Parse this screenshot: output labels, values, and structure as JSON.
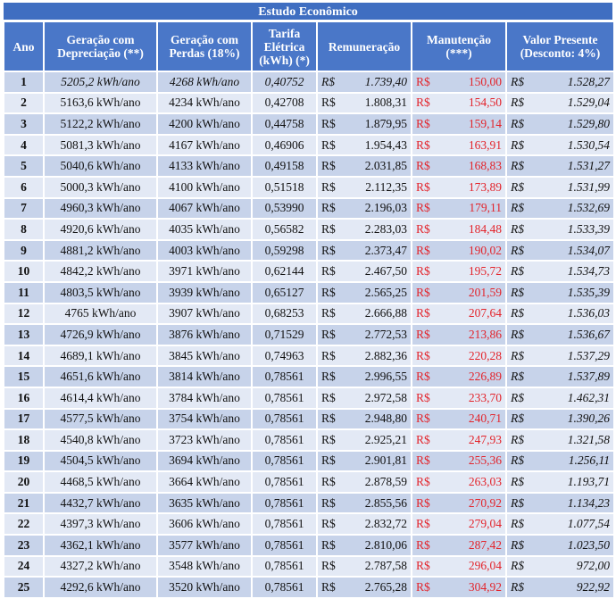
{
  "title": "Estudo Econômico",
  "headers": {
    "ano": "Ano",
    "geracao_dep": "Geração com Depreciação (**)",
    "geracao_perdas": "Geração com Perdas (18%)",
    "tarifa": "Tarifa Elétrica (kWh) (*)",
    "remuneracao": "Remuneração",
    "manutencao": "Manutenção (***)",
    "valor_presente": "Valor Presente (Desconto: 4%)"
  },
  "currency": "R$",
  "rows": [
    {
      "ano": "1",
      "g1": "5205,2 kWh/ano",
      "g2": "4268 kWh/ano",
      "t": "0,40752",
      "r": "1.739,40",
      "m": "150,00",
      "v": "1.528,27"
    },
    {
      "ano": "2",
      "g1": "5163,6 kWh/ano",
      "g2": "4234 kWh/ano",
      "t": "0,42708",
      "r": "1.808,31",
      "m": "154,50",
      "v": "1.529,04"
    },
    {
      "ano": "3",
      "g1": "5122,2 kWh/ano",
      "g2": "4200 kWh/ano",
      "t": "0,44758",
      "r": "1.879,95",
      "m": "159,14",
      "v": "1.529,80"
    },
    {
      "ano": "4",
      "g1": "5081,3 kWh/ano",
      "g2": "4167 kWh/ano",
      "t": "0,46906",
      "r": "1.954,43",
      "m": "163,91",
      "v": "1.530,54"
    },
    {
      "ano": "5",
      "g1": "5040,6 kWh/ano",
      "g2": "4133 kWh/ano",
      "t": "0,49158",
      "r": "2.031,85",
      "m": "168,83",
      "v": "1.531,27"
    },
    {
      "ano": "6",
      "g1": "5000,3 kWh/ano",
      "g2": "4100 kWh/ano",
      "t": "0,51518",
      "r": "2.112,35",
      "m": "173,89",
      "v": "1.531,99"
    },
    {
      "ano": "7",
      "g1": "4960,3 kWh/ano",
      "g2": "4067 kWh/ano",
      "t": "0,53990",
      "r": "2.196,03",
      "m": "179,11",
      "v": "1.532,69"
    },
    {
      "ano": "8",
      "g1": "4920,6 kWh/ano",
      "g2": "4035 kWh/ano",
      "t": "0,56582",
      "r": "2.283,03",
      "m": "184,48",
      "v": "1.533,39"
    },
    {
      "ano": "9",
      "g1": "4881,2 kWh/ano",
      "g2": "4003 kWh/ano",
      "t": "0,59298",
      "r": "2.373,47",
      "m": "190,02",
      "v": "1.534,07"
    },
    {
      "ano": "10",
      "g1": "4842,2 kWh/ano",
      "g2": "3971 kWh/ano",
      "t": "0,62144",
      "r": "2.467,50",
      "m": "195,72",
      "v": "1.534,73"
    },
    {
      "ano": "11",
      "g1": "4803,5 kWh/ano",
      "g2": "3939 kWh/ano",
      "t": "0,65127",
      "r": "2.565,25",
      "m": "201,59",
      "v": "1.535,39"
    },
    {
      "ano": "12",
      "g1": "4765 kWh/ano",
      "g2": "3907 kWh/ano",
      "t": "0,68253",
      "r": "2.666,88",
      "m": "207,64",
      "v": "1.536,03"
    },
    {
      "ano": "13",
      "g1": "4726,9 kWh/ano",
      "g2": "3876 kWh/ano",
      "t": "0,71529",
      "r": "2.772,53",
      "m": "213,86",
      "v": "1.536,67"
    },
    {
      "ano": "14",
      "g1": "4689,1 kWh/ano",
      "g2": "3845 kWh/ano",
      "t": "0,74963",
      "r": "2.882,36",
      "m": "220,28",
      "v": "1.537,29"
    },
    {
      "ano": "15",
      "g1": "4651,6 kWh/ano",
      "g2": "3814 kWh/ano",
      "t": "0,78561",
      "r": "2.996,55",
      "m": "226,89",
      "v": "1.537,89"
    },
    {
      "ano": "16",
      "g1": "4614,4 kWh/ano",
      "g2": "3784 kWh/ano",
      "t": "0,78561",
      "r": "2.972,58",
      "m": "233,70",
      "v": "1.462,31"
    },
    {
      "ano": "17",
      "g1": "4577,5 kWh/ano",
      "g2": "3754 kWh/ano",
      "t": "0,78561",
      "r": "2.948,80",
      "m": "240,71",
      "v": "1.390,26"
    },
    {
      "ano": "18",
      "g1": "4540,8 kWh/ano",
      "g2": "3723 kWh/ano",
      "t": "0,78561",
      "r": "2.925,21",
      "m": "247,93",
      "v": "1.321,58"
    },
    {
      "ano": "19",
      "g1": "4504,5 kWh/ano",
      "g2": "3694 kWh/ano",
      "t": "0,78561",
      "r": "2.901,81",
      "m": "255,36",
      "v": "1.256,11"
    },
    {
      "ano": "20",
      "g1": "4468,5 kWh/ano",
      "g2": "3664 kWh/ano",
      "t": "0,78561",
      "r": "2.878,59",
      "m": "263,03",
      "v": "1.193,71"
    },
    {
      "ano": "21",
      "g1": "4432,7 kWh/ano",
      "g2": "3635 kWh/ano",
      "t": "0,78561",
      "r": "2.855,56",
      "m": "270,92",
      "v": "1.134,23"
    },
    {
      "ano": "22",
      "g1": "4397,3 kWh/ano",
      "g2": "3606 kWh/ano",
      "t": "0,78561",
      "r": "2.832,72",
      "m": "279,04",
      "v": "1.077,54"
    },
    {
      "ano": "23",
      "g1": "4362,1 kWh/ano",
      "g2": "3577 kWh/ano",
      "t": "0,78561",
      "r": "2.810,06",
      "m": "287,42",
      "v": "1.023,50"
    },
    {
      "ano": "24",
      "g1": "4327,2 kWh/ano",
      "g2": "3548 kWh/ano",
      "t": "0,78561",
      "r": "2.787,58",
      "m": "296,04",
      "v": "972,00"
    },
    {
      "ano": "25",
      "g1": "4292,6 kWh/ano",
      "g2": "3520 kWh/ano",
      "t": "0,78561",
      "r": "2.765,28",
      "m": "304,92",
      "v": "922,92"
    }
  ]
}
